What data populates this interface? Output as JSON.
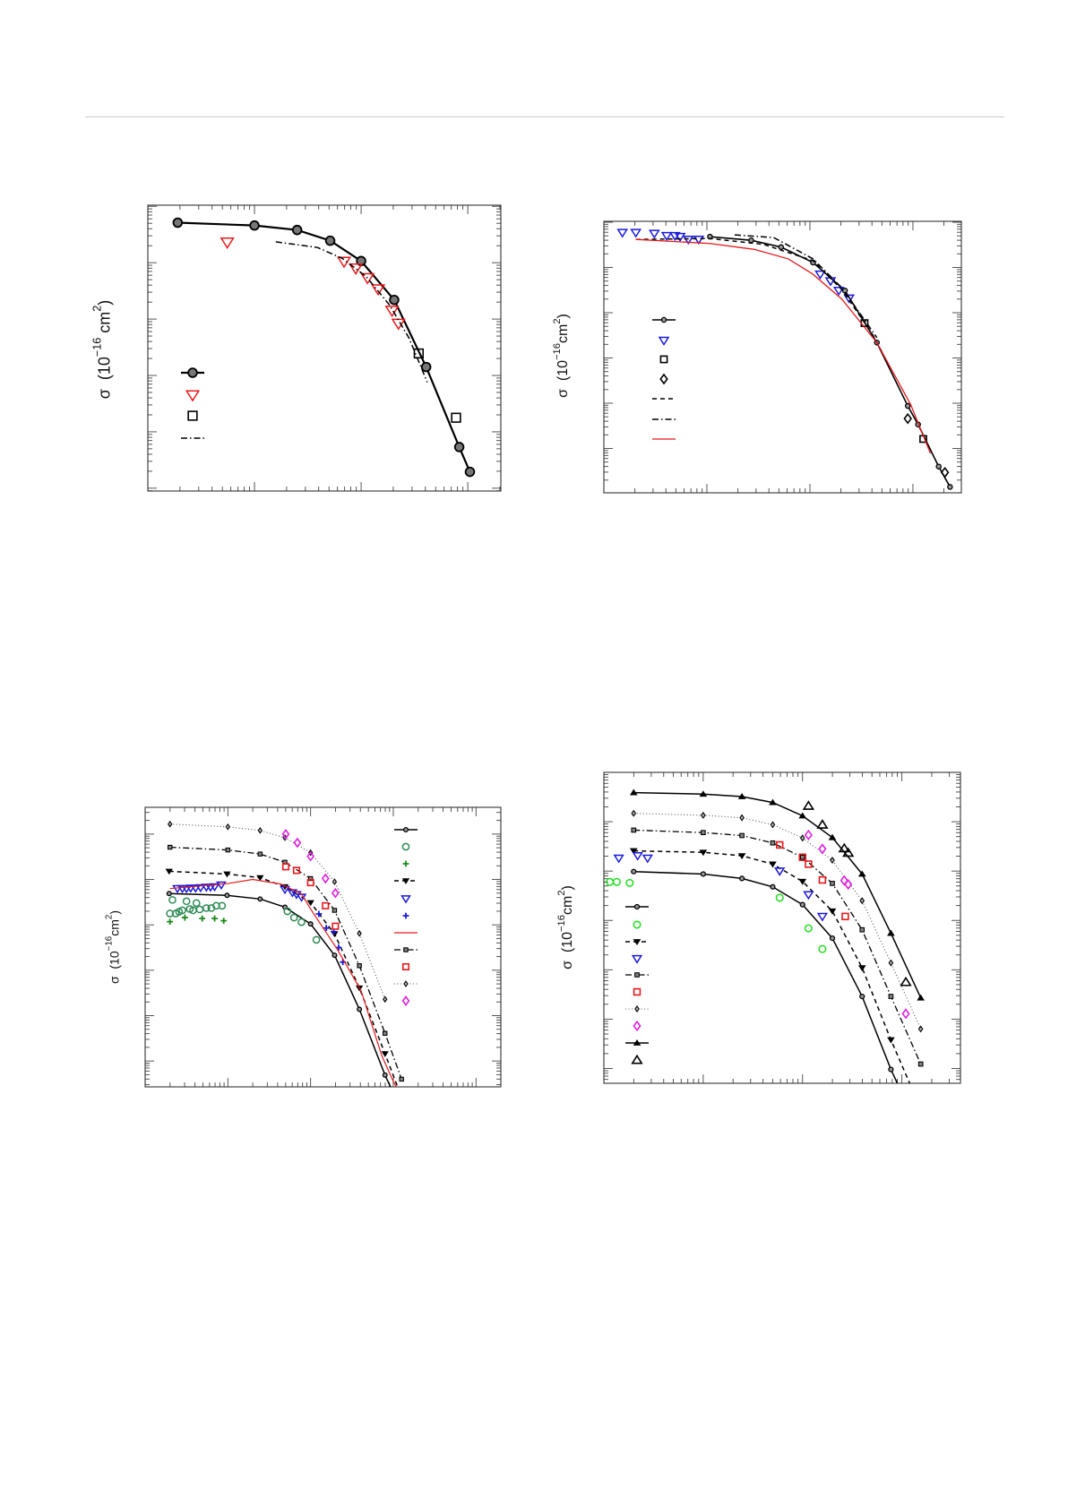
{
  "header": {
    "rule": "page-header-rule"
  },
  "chart_data": [
    {
      "type": "line",
      "title": "",
      "xscale": "log",
      "yscale": "log",
      "xlabel": "",
      "ylabel": {
        "sym": "σ",
        "pre": "(10",
        "exp": "−16",
        "unit": " cm",
        "unit_exp": "2",
        "post": ")"
      },
      "xlim_log10": [
        0,
        3.31
      ],
      "ylim_log10": [
        -3.05,
        2.02
      ],
      "legend": "left",
      "series": [
        {
          "name": "series-1",
          "line": "solid",
          "color": "#000000",
          "marker": "circle",
          "lw": 2.2,
          "log10_x": [
            0.28,
            1,
            1.4,
            1.71,
            2,
            2.31,
            2.61,
            2.92,
            3.02
          ],
          "log10_y": [
            1.71,
            1.66,
            1.58,
            1.39,
            1.03,
            0.34,
            -0.85,
            -2.27,
            -2.71
          ]
        },
        {
          "name": "series-2",
          "line": "none",
          "color": "#e8191c",
          "marker": "tri-down-open",
          "log10_x": [
            0.745,
            1.84,
            1.95,
            2.06,
            2.16,
            2.29,
            2.35
          ],
          "log10_y": [
            1.36,
            1.02,
            0.9,
            0.73,
            0.53,
            0.15,
            -0.08
          ]
        },
        {
          "name": "series-3",
          "line": "none",
          "color": "#000000",
          "marker": "square-open",
          "log10_x": [
            2.54,
            2.89
          ],
          "log10_y": [
            -0.61,
            -1.75
          ]
        },
        {
          "name": "series-4",
          "line": "dashdot",
          "color": "#000000",
          "marker": "none",
          "lw": 1.5,
          "log10_x": [
            1.2,
            1.59,
            1.82,
            2.05,
            2.27,
            2.45,
            2.62
          ],
          "log10_y": [
            1.37,
            1.27,
            1.08,
            0.75,
            0.24,
            -0.34,
            -1.12
          ]
        }
      ]
    },
    {
      "type": "line",
      "title": "",
      "xscale": "log",
      "yscale": "log",
      "xlabel": "",
      "ylabel": {
        "sym": "σ",
        "pre": "(10",
        "exp": "−16",
        "unit": "cm",
        "unit_exp": "2",
        "post": ")"
      },
      "xlim_log10": [
        0,
        3.47
      ],
      "ylim_log10": [
        -2.98,
        3.02
      ],
      "legend": "left",
      "series": [
        {
          "name": "series-1",
          "line": "solid",
          "color": "#000000",
          "marker": "circle-small",
          "lw": 1.6,
          "log10_x": [
            1.03,
            1.43,
            1.72,
            2.03,
            2.34,
            2.65,
            2.95,
            3.05,
            3.25,
            3.36
          ],
          "log10_y": [
            2.68,
            2.6,
            2.45,
            2.11,
            1.49,
            0.34,
            -1.06,
            -1.47,
            -2.4,
            -2.85
          ]
        },
        {
          "name": "series-2",
          "line": "none",
          "color": "#1a1adc",
          "marker": "tri-down-open",
          "log10_x": [
            0.18,
            0.31,
            0.49,
            0.61,
            0.69,
            0.74,
            0.82,
            0.92,
            2.1,
            2.2,
            2.28,
            2.38
          ],
          "log10_y": [
            2.77,
            2.77,
            2.75,
            2.7,
            2.7,
            2.68,
            2.62,
            2.62,
            1.85,
            1.7,
            1.49,
            1.32
          ]
        },
        {
          "name": "series-3",
          "line": "none",
          "color": "#000000",
          "marker": "square-open",
          "log10_x": [
            2.53,
            3.1
          ],
          "log10_y": [
            0.77,
            -1.79
          ]
        },
        {
          "name": "series-4",
          "line": "none",
          "color": "#000000",
          "marker": "diamond-open",
          "log10_x": [
            2.95,
            3.31
          ],
          "log10_y": [
            -1.34,
            -2.53
          ]
        },
        {
          "name": "series-5",
          "line": "dashed",
          "color": "#000000",
          "marker": "none",
          "lw": 1.5,
          "log10_x": [
            0.31,
            1.03,
            1.55,
            2.03,
            2.31,
            2.6,
            2.7
          ],
          "log10_y": [
            2.62,
            2.64,
            2.51,
            2.15,
            1.51,
            0.55,
            0.13
          ]
        },
        {
          "name": "series-6",
          "line": "dashdot",
          "color": "#000000",
          "marker": "none",
          "lw": 1.5,
          "log10_x": [
            1.27,
            1.65,
            2.03,
            2.31,
            2.65
          ],
          "log10_y": [
            2.72,
            2.66,
            2.19,
            1.55,
            0.45
          ]
        },
        {
          "name": "series-7",
          "line": "solid",
          "color": "#e8191c",
          "marker": "none",
          "lw": 1.3,
          "log10_x": [
            0.31,
            1.03,
            1.46,
            1.79,
            2.03,
            2.31,
            2.65,
            2.98,
            3.17
          ],
          "log10_y": [
            2.62,
            2.53,
            2.4,
            2.19,
            1.85,
            1.3,
            0.34,
            -1.04,
            -2.11
          ]
        }
      ]
    },
    {
      "type": "line",
      "title": "",
      "xscale": "log",
      "yscale": "log",
      "xlabel": "",
      "ylabel": {
        "sym": "σ",
        "pre": "(10",
        "exp": "−16",
        "unit": "cm",
        "unit_exp": "2",
        "post": ")"
      },
      "xlim_log10": [
        0,
        4.3
      ],
      "ylim_log10": [
        -3.57,
        2.59
      ],
      "legend": "right",
      "series": [
        {
          "name": "series-1",
          "line": "solid",
          "color": "#000000",
          "marker": "circle-small",
          "lw": 1.5,
          "log10_x": [
            0.29,
            0.99,
            1.39,
            1.69,
            2.0,
            2.29,
            2.59,
            2.9,
            3.05
          ],
          "log10_y": [
            0.69,
            0.65,
            0.57,
            0.39,
            0.02,
            -0.67,
            -1.86,
            -3.31,
            -3.9
          ]
        },
        {
          "name": "series-2",
          "line": "none",
          "color": "#2e8b57",
          "marker": "circle-open",
          "log10_x": [
            0.3,
            0.33,
            0.37,
            0.41,
            0.45,
            0.5,
            0.54,
            0.58,
            0.62,
            0.66,
            0.74,
            0.8,
            0.86,
            0.93,
            1.72,
            1.8,
            1.89,
            2.07
          ],
          "log10_y": [
            0.25,
            0.55,
            0.25,
            0.29,
            0.32,
            0.52,
            0.35,
            0.32,
            0.48,
            0.34,
            0.37,
            0.37,
            0.42,
            0.42,
            0.3,
            0.16,
            0.06,
            -0.33
          ]
        },
        {
          "name": "series-3",
          "line": "none",
          "color": "#1a8a1a",
          "marker": "plus",
          "log10_x": [
            0.3,
            0.48,
            0.69,
            0.84,
            0.95
          ],
          "log10_y": [
            0.07,
            0.16,
            0.14,
            0.14,
            0.09
          ]
        },
        {
          "name": "series-4",
          "line": "dashed",
          "color": "#000000",
          "marker": "tri-down-filled",
          "lw": 1.5,
          "log10_x": [
            0.29,
            0.99,
            1.39,
            1.69,
            2.0,
            2.29,
            2.59,
            2.9,
            3.1
          ],
          "log10_y": [
            1.18,
            1.12,
            1.04,
            0.84,
            0.49,
            -0.2,
            -1.39,
            -2.84,
            -3.8
          ]
        },
        {
          "name": "series-5",
          "line": "none",
          "color": "#1a1adc",
          "marker": "tri-down-open",
          "log10_x": [
            0.39,
            0.45,
            0.5,
            0.55,
            0.61,
            0.67,
            0.74,
            0.79,
            0.84,
            0.92,
            1.69,
            1.78,
            1.83,
            1.89
          ],
          "log10_y": [
            0.8,
            0.8,
            0.8,
            0.81,
            0.81,
            0.82,
            0.83,
            0.83,
            0.84,
            0.88,
            0.78,
            0.71,
            0.67,
            0.61
          ]
        },
        {
          "name": "series-6",
          "line": "none",
          "color": "#1a1adc",
          "marker": "plus",
          "log10_x": [
            2.1,
            2.19,
            2.28,
            2.34,
            2.39
          ],
          "log10_y": [
            0.24,
            -0.07,
            -0.15,
            -0.5,
            -0.82
          ]
        },
        {
          "name": "series-7",
          "line": "solid",
          "color": "#e8191c",
          "marker": "none",
          "lw": 1.2,
          "log10_x": [
            0.3,
            1.0,
            1.3,
            1.64,
            1.89,
            2.0,
            2.32,
            2.61,
            2.86,
            2.99,
            3.1
          ],
          "log10_y": [
            0.8,
            0.91,
            1.0,
            0.9,
            0.68,
            0.35,
            -0.53,
            -1.45,
            -2.88,
            -3.41,
            -3.8
          ]
        },
        {
          "name": "series-8",
          "line": "dashdot",
          "color": "#000000",
          "marker": "square-small",
          "lw": 1.3,
          "log10_x": [
            0.3,
            1.0,
            1.39,
            1.69,
            2.0,
            2.29,
            2.59,
            2.9,
            3.1
          ],
          "log10_y": [
            1.71,
            1.65,
            1.56,
            1.38,
            1.02,
            0.32,
            -0.9,
            -2.39,
            -3.4
          ]
        },
        {
          "name": "series-9",
          "line": "none",
          "color": "#e8191c",
          "marker": "square-open",
          "log10_x": [
            1.7,
            1.83,
            2.0,
            2.18,
            2.3
          ],
          "log10_y": [
            1.28,
            1.2,
            0.93,
            0.42,
            -0.03
          ]
        },
        {
          "name": "series-10",
          "line": "dotted",
          "color": "#555555",
          "marker": "diamond-small",
          "lw": 1.1,
          "log10_x": [
            0.3,
            1.0,
            1.39,
            1.69,
            2.0,
            2.29,
            2.59,
            2.9
          ],
          "log10_y": [
            2.22,
            2.16,
            2.08,
            1.92,
            1.59,
            0.95,
            -0.19,
            -1.64
          ]
        },
        {
          "name": "series-11",
          "line": "none",
          "color": "#e020e0",
          "marker": "diamond-open",
          "log10_x": [
            1.7,
            1.84,
            2.0,
            2.18,
            2.3
          ],
          "log10_y": [
            2.0,
            1.81,
            1.51,
            1.02,
            0.7
          ]
        }
      ]
    },
    {
      "type": "line",
      "title": "",
      "xscale": "log",
      "yscale": "log",
      "xlabel": "",
      "ylabel": {
        "sym": "σ",
        "pre": "(10",
        "exp": "−16",
        "unit": "cm",
        "unit_exp": "2",
        "post": ")"
      },
      "xlim_log10": [
        0,
        3.59
      ],
      "ylim_log10": [
        -3.3,
        3.0
      ],
      "legend": "left",
      "series": [
        {
          "name": "series-1",
          "line": "solid",
          "color": "#000000",
          "marker": "circle-small",
          "lw": 1.5,
          "log10_x": [
            0.3,
            1.0,
            1.39,
            1.7,
            2.0,
            2.3,
            2.6,
            2.89,
            3.0
          ],
          "log10_y": [
            0.99,
            0.94,
            0.85,
            0.68,
            0.32,
            -0.36,
            -1.54,
            -3.02,
            -3.5
          ]
        },
        {
          "name": "series-2",
          "line": "none",
          "color": "#22dd22",
          "marker": "circle-open",
          "log10_x": [
            0.06,
            0.13,
            0.26,
            1.77,
            2.06,
            2.2
          ],
          "log10_y": [
            0.78,
            0.78,
            0.76,
            0.46,
            -0.16,
            -0.58
          ]
        },
        {
          "name": "series-3",
          "line": "dashed",
          "color": "#000000",
          "marker": "tri-down-filled",
          "lw": 1.5,
          "log10_x": [
            0.3,
            1.0,
            1.39,
            1.7,
            2.0,
            2.3,
            2.6,
            2.89,
            3.1
          ],
          "log10_y": [
            1.41,
            1.38,
            1.31,
            1.14,
            0.79,
            0.19,
            -0.96,
            -2.42,
            -3.4
          ]
        },
        {
          "name": "series-4",
          "line": "none",
          "color": "#1a1adc",
          "marker": "tri-down-open",
          "log10_x": [
            0.15,
            0.34,
            0.44,
            1.77,
            2.06,
            2.2
          ],
          "log10_y": [
            1.26,
            1.31,
            1.26,
            1.0,
            0.52,
            0.08
          ]
        },
        {
          "name": "series-5",
          "line": "dashdot",
          "color": "#000000",
          "marker": "square-small",
          "lw": 1.3,
          "log10_x": [
            0.3,
            1.0,
            1.39,
            1.7,
            2.0,
            2.3,
            2.6,
            2.89,
            3.19
          ],
          "log10_y": [
            1.83,
            1.78,
            1.72,
            1.57,
            1.28,
            0.75,
            -0.19,
            -1.54,
            -2.91
          ]
        },
        {
          "name": "series-6",
          "line": "none",
          "color": "#e8191c",
          "marker": "square-open",
          "log10_x": [
            1.77,
            2.0,
            2.06,
            2.2,
            2.43
          ],
          "log10_y": [
            1.53,
            1.28,
            1.14,
            0.82,
            0.08
          ]
        },
        {
          "name": "series-7",
          "line": "dotted",
          "color": "#555555",
          "marker": "diamond-small",
          "lw": 1.1,
          "log10_x": [
            0.3,
            1.0,
            1.39,
            1.7,
            2.0,
            2.3,
            2.6,
            2.89,
            3.19
          ],
          "log10_y": [
            2.17,
            2.13,
            2.08,
            1.94,
            1.67,
            1.22,
            0.4,
            -0.86,
            -2.2
          ]
        },
        {
          "name": "series-8",
          "line": "none",
          "color": "#e020e0",
          "marker": "diamond-open",
          "log10_x": [
            2.06,
            2.2,
            2.42,
            2.46,
            3.04
          ],
          "log10_y": [
            1.73,
            1.45,
            0.81,
            0.73,
            -1.89
          ]
        },
        {
          "name": "series-9",
          "line": "solid",
          "color": "#000000",
          "marker": "tri-up-filled",
          "lw": 1.5,
          "log10_x": [
            0.3,
            1.0,
            1.39,
            1.7,
            2.0,
            2.3,
            2.6,
            2.89,
            3.19
          ],
          "log10_y": [
            2.59,
            2.56,
            2.51,
            2.39,
            2.12,
            1.68,
            0.94,
            -0.26,
            -1.57
          ]
        },
        {
          "name": "series-10",
          "line": "none",
          "color": "#000000",
          "marker": "tri-up-open",
          "log10_x": [
            2.06,
            2.2,
            2.42,
            2.46,
            3.04
          ],
          "log10_y": [
            2.32,
            1.94,
            1.46,
            1.37,
            -1.25
          ]
        }
      ]
    }
  ]
}
